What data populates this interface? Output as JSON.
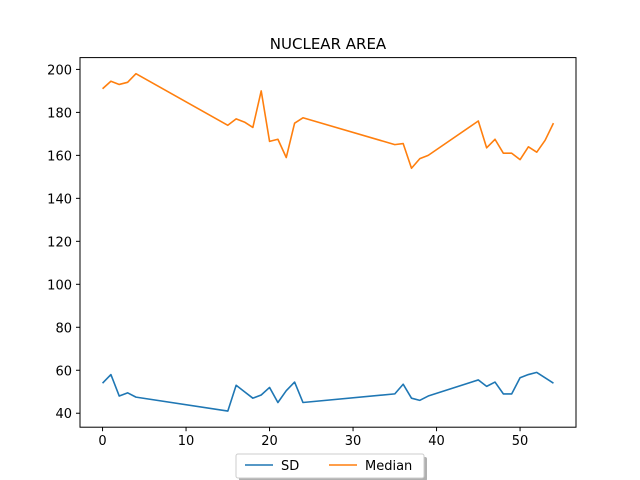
{
  "chart_data": {
    "type": "line",
    "title": "NUCLEAR AREA",
    "xlabel": "",
    "ylabel": "",
    "xlim": [
      -2.7,
      56.7
    ],
    "ylim": [
      33.5,
      205.5
    ],
    "xticks": [
      0,
      10,
      20,
      30,
      40,
      50
    ],
    "yticks": [
      40,
      60,
      80,
      100,
      120,
      140,
      160,
      180,
      200
    ],
    "grid": false,
    "legend_position": "bottom-center",
    "series": [
      {
        "name": "SD",
        "color": "#1f77b4",
        "x": [
          0,
          1,
          2,
          3,
          4,
          15,
          16,
          17,
          18,
          19,
          20,
          21,
          22,
          23,
          24,
          35,
          36,
          37,
          38,
          39,
          45,
          46,
          47,
          48,
          49,
          50,
          51,
          52,
          54
        ],
        "y": [
          54,
          58,
          48,
          49.5,
          47.5,
          41,
          53,
          50,
          47,
          48.5,
          52,
          45,
          50.5,
          54.5,
          45,
          49,
          53.5,
          47,
          46,
          48,
          55.5,
          52.5,
          54.5,
          49,
          49,
          56.5,
          58,
          59,
          54
        ]
      },
      {
        "name": "Median",
        "color": "#ff7f0e",
        "x": [
          0,
          1,
          2,
          3,
          4,
          15,
          16,
          17,
          18,
          19,
          20,
          21,
          22,
          23,
          24,
          35,
          36,
          37,
          38,
          39,
          45,
          46,
          47,
          48,
          49,
          50,
          51,
          52,
          53,
          54
        ],
        "y": [
          191,
          194.5,
          193,
          194,
          198,
          174,
          177,
          175.5,
          173,
          190,
          166.5,
          167.5,
          159,
          175,
          177.5,
          165,
          165.5,
          154,
          158.5,
          160,
          176,
          163.5,
          167.5,
          161,
          161,
          158,
          164,
          161.5,
          167,
          175
        ]
      }
    ]
  }
}
